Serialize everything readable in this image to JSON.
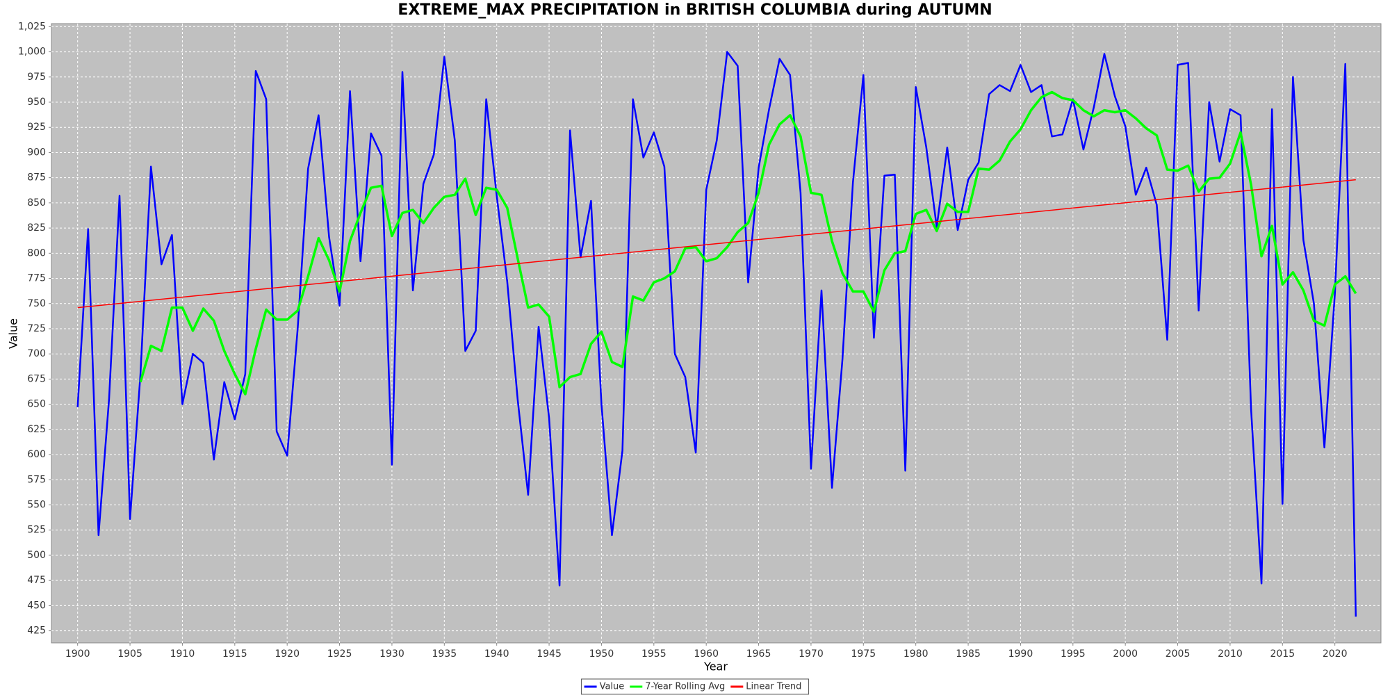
{
  "chart_data": {
    "type": "line",
    "title": "EXTREME_MAX PRECIPITATION in BRITISH COLUMBIA during AUTUMN",
    "x_label": "Year",
    "y_label": "Value",
    "x": [
      1900,
      1901,
      1902,
      1903,
      1904,
      1905,
      1906,
      1907,
      1908,
      1909,
      1910,
      1911,
      1912,
      1913,
      1914,
      1915,
      1916,
      1917,
      1918,
      1919,
      1920,
      1921,
      1922,
      1923,
      1924,
      1925,
      1926,
      1927,
      1928,
      1929,
      1930,
      1931,
      1932,
      1933,
      1934,
      1935,
      1936,
      1937,
      1938,
      1939,
      1940,
      1941,
      1942,
      1943,
      1944,
      1945,
      1946,
      1947,
      1948,
      1949,
      1950,
      1951,
      1952,
      1953,
      1954,
      1955,
      1956,
      1957,
      1958,
      1959,
      1960,
      1961,
      1962,
      1963,
      1964,
      1965,
      1966,
      1967,
      1968,
      1969,
      1970,
      1971,
      1972,
      1973,
      1974,
      1975,
      1976,
      1977,
      1978,
      1979,
      1980,
      1981,
      1982,
      1983,
      1984,
      1985,
      1986,
      1987,
      1988,
      1989,
      1990,
      1991,
      1992,
      1993,
      1994,
      1995,
      1996,
      1997,
      1998,
      1999,
      2000,
      2001,
      2002,
      2003,
      2004,
      2005,
      2006,
      2007,
      2008,
      2009,
      2010,
      2011,
      2012,
      2013,
      2014,
      2015,
      2016,
      2017,
      2018,
      2019,
      2020,
      2021,
      2022
    ],
    "series": [
      {
        "name": "Value",
        "color": "#0000ff",
        "values": [
          647,
          824,
          520,
          655,
          857,
          536,
          680,
          886,
          789,
          818,
          650,
          700,
          691,
          595,
          672,
          635,
          680,
          981,
          953,
          623,
          599,
          725,
          884,
          937,
          816,
          748,
          961,
          792,
          919,
          897,
          590,
          980,
          763,
          869,
          898,
          995,
          912,
          703,
          723,
          953,
          857,
          772,
          655,
          560,
          727,
          636,
          470,
          922,
          796,
          852,
          650,
          520,
          604,
          953,
          895,
          920,
          886,
          700,
          677,
          602,
          863,
          912,
          1000,
          986,
          771,
          885,
          943,
          993,
          977,
          860,
          586,
          763,
          567,
          695,
          870,
          977,
          716,
          877,
          878,
          584,
          965,
          905,
          826,
          905,
          823,
          873,
          890,
          958,
          967,
          961,
          987,
          960,
          967,
          916,
          918,
          953,
          903,
          945,
          998,
          956,
          926,
          858,
          885,
          848,
          714,
          987,
          989,
          743,
          950,
          891,
          943,
          937,
          645,
          472,
          943,
          551,
          975,
          813,
          750,
          607,
          760,
          988,
          439
        ]
      },
      {
        "name": "7-Year Rolling Avg",
        "color": "#00ff00",
        "values": [
          null,
          null,
          null,
          null,
          null,
          null,
          672,
          708,
          703,
          746,
          746,
          723,
          745,
          733,
          703,
          680,
          660,
          705,
          744,
          734,
          734,
          743,
          777,
          815,
          793,
          762,
          812,
          840,
          865,
          867,
          817,
          840,
          843,
          830,
          845,
          856,
          858,
          874,
          838,
          865,
          863,
          845,
          795,
          746,
          749,
          737,
          667,
          677,
          680,
          710,
          722,
          692,
          687,
          757,
          753,
          771,
          775,
          782,
          805,
          806,
          792,
          795,
          806,
          821,
          830,
          860,
          908,
          928,
          937,
          916,
          860,
          858,
          812,
          780,
          762,
          762,
          742,
          783,
          800,
          802,
          839,
          843,
          822,
          849,
          841,
          841,
          884,
          883,
          892,
          911,
          923,
          942,
          955,
          960,
          954,
          952,
          942,
          936,
          942,
          940,
          942,
          934,
          924,
          917,
          883,
          882,
          887,
          861,
          874,
          875,
          889,
          920,
          868,
          797,
          827,
          769,
          781,
          763,
          733,
          728,
          769,
          777,
          760
        ]
      },
      {
        "name": "Linear Trend",
        "color": "#ff0000",
        "x": [
          1900,
          2022
        ],
        "values": [
          746,
          873
        ]
      }
    ],
    "xlim": [
      1897.5,
      2024.4
    ],
    "ylim": [
      413,
      1028
    ],
    "xticks": [
      1900,
      1905,
      1910,
      1915,
      1920,
      1925,
      1930,
      1935,
      1940,
      1945,
      1950,
      1955,
      1960,
      1965,
      1970,
      1975,
      1980,
      1985,
      1990,
      1995,
      2000,
      2005,
      2010,
      2015,
      2020
    ],
    "yticks": [
      425,
      450,
      475,
      500,
      525,
      550,
      575,
      600,
      625,
      650,
      675,
      700,
      725,
      750,
      775,
      800,
      825,
      850,
      875,
      900,
      925,
      950,
      975,
      {
        "value": 1000,
        "label": "1,000"
      },
      {
        "value": 1025,
        "label": "1,025"
      }
    ],
    "grid": true,
    "legend": "bottom"
  }
}
